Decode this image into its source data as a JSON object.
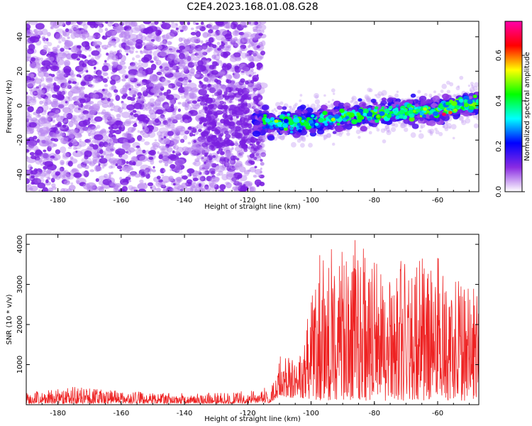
{
  "title": "C2E4.2023.168.01.08.G28",
  "chart_data": [
    {
      "type": "heatmap",
      "xlabel": "Height of straight line (km)",
      "ylabel": "Frequency (Hz)",
      "xlim": [
        -190,
        -47
      ],
      "ylim": [
        -50,
        49
      ],
      "xticks": [
        -180,
        -160,
        -140,
        -120,
        -100,
        -80,
        -60
      ],
      "yticks": [
        -40,
        -20,
        0,
        20,
        40
      ],
      "colorbar": {
        "label": "Normalized spectral amplitude",
        "range": [
          0.0,
          0.75
        ],
        "ticks": [
          0.0,
          0.2,
          0.4,
          0.6
        ],
        "colors": [
          "#ffffff",
          "#8a2be2",
          "#0000ff",
          "#00ffff",
          "#00ff00",
          "#ffff00",
          "#ff0000",
          "#ff00aa"
        ]
      },
      "features": {
        "noise_region_x": [
          -190,
          -115
        ],
        "signal_ridge": [
          {
            "x": -120,
            "freq": -9
          },
          {
            "x": -110,
            "freq": -10
          },
          {
            "x": -100,
            "freq": -9
          },
          {
            "x": -90,
            "freq": -7
          },
          {
            "x": -80,
            "freq": -5
          },
          {
            "x": -70,
            "freq": -3
          },
          {
            "x": -60,
            "freq": -3
          },
          {
            "x": -50,
            "freq": 1
          }
        ]
      }
    },
    {
      "type": "line",
      "xlabel": "Height of straight line (km)",
      "ylabel": "SNR (10 * v/v)",
      "xlim": [
        -190,
        -47
      ],
      "ylim": [
        0,
        4250
      ],
      "xticks": [
        -180,
        -160,
        -140,
        -120,
        -100,
        -80,
        -60
      ],
      "yticks": [
        1000,
        2000,
        3000,
        4000
      ],
      "color": "#ee2222",
      "envelope": [
        {
          "x": -190,
          "min": 30,
          "max": 300
        },
        {
          "x": -175,
          "min": 30,
          "max": 450
        },
        {
          "x": -150,
          "min": 30,
          "max": 300
        },
        {
          "x": -125,
          "min": 30,
          "max": 300
        },
        {
          "x": -113,
          "min": 50,
          "max": 450
        },
        {
          "x": -110,
          "min": 200,
          "max": 1200
        },
        {
          "x": -103,
          "min": 150,
          "max": 1300
        },
        {
          "x": -98,
          "min": 100,
          "max": 3700
        },
        {
          "x": -88,
          "min": 100,
          "max": 4200
        },
        {
          "x": -83,
          "min": 100,
          "max": 4050
        },
        {
          "x": -78,
          "min": 100,
          "max": 3500
        },
        {
          "x": -70,
          "min": 100,
          "max": 3700
        },
        {
          "x": -60,
          "min": 100,
          "max": 3700
        },
        {
          "x": -52,
          "min": 100,
          "max": 3000
        },
        {
          "x": -47,
          "min": 100,
          "max": 2900
        }
      ]
    }
  ]
}
